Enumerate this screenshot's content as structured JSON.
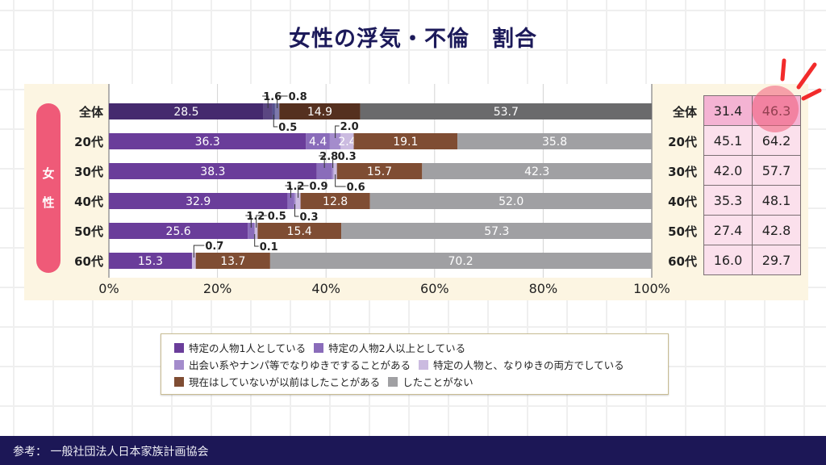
{
  "title": "女性の浮気・不倫　割合",
  "group_label": [
    "女",
    "性"
  ],
  "footer": {
    "source": "参考： 一般社団法人日本家族計画協会"
  },
  "colors": {
    "series": [
      "#6a3d9a",
      "#8a6cba",
      "#a48ccc",
      "#cbbbe0",
      "#7f4d33",
      "#a0a0a3"
    ],
    "overall_series": [
      "#452a6e",
      "#5b4682",
      "#55528f",
      "#7d79ab",
      "#55301f",
      "#6a6a6c"
    ],
    "table_header_fill": "#f4b3d3",
    "table_fill": "#fbe0ec",
    "highlight": "#ef5a78",
    "title": "#1c1a5a",
    "footer_bg": "#1c1756"
  },
  "chart_data": {
    "type": "bar",
    "orientation": "horizontal-stacked-100",
    "title": "女性の浮気・不倫　割合",
    "xlabel": "",
    "ylabel": "",
    "xlim": [
      0,
      100
    ],
    "x_ticks": [
      "0%",
      "20%",
      "40%",
      "60%",
      "80%",
      "100%"
    ],
    "grid": true,
    "legend_position": "bottom",
    "categories": [
      "全体",
      "20代",
      "30代",
      "40代",
      "50代",
      "60代"
    ],
    "series": [
      {
        "name": "特定の人物1人としている",
        "values": [
          28.5,
          36.3,
          38.3,
          32.9,
          25.6,
          15.3
        ]
      },
      {
        "name": "特定の人物2人以上としている",
        "values": [
          1.6,
          4.4,
          2.8,
          1.2,
          1.2,
          0.0
        ]
      },
      {
        "name": "出会い系やナンパ等でなりゆきですることがある",
        "values": [
          0.5,
          2.0,
          0.3,
          0.3,
          0.1,
          0.0
        ]
      },
      {
        "name": "特定の人物と、なりゆきの両方でしている",
        "values": [
          0.8,
          2.4,
          0.6,
          0.9,
          0.5,
          0.7
        ]
      },
      {
        "name": "現在はしていないが以前はしたことがある",
        "values": [
          14.9,
          19.1,
          15.7,
          12.8,
          15.4,
          13.7
        ]
      },
      {
        "name": "したことがない",
        "values": [
          53.7,
          35.8,
          42.3,
          52.0,
          57.3,
          70.2
        ]
      }
    ],
    "inside_labels": [
      [
        "28.5",
        "",
        "",
        "",
        "14.9",
        "53.7"
      ],
      [
        "36.3",
        "4.4",
        "",
        "2.4",
        "19.1",
        "35.8"
      ],
      [
        "38.3",
        "",
        "",
        "",
        "15.7",
        "42.3"
      ],
      [
        "32.9",
        "",
        "",
        "",
        "12.8",
        "52.0"
      ],
      [
        "25.6",
        "",
        "",
        "",
        "15.4",
        "57.3"
      ],
      [
        "15.3",
        "",
        "",
        "",
        "13.7",
        "70.2"
      ]
    ],
    "callouts": [
      {
        "row": 0,
        "text": "1.6",
        "series": 1,
        "side": "above"
      },
      {
        "row": 0,
        "text": "0.8",
        "series": 3,
        "side": "above"
      },
      {
        "row": 0,
        "text": "0.5",
        "series": 2,
        "side": "below"
      },
      {
        "row": 1,
        "text": "2.0",
        "series": 2,
        "side": "above"
      },
      {
        "row": 2,
        "text": "2.8",
        "series": 1,
        "side": "above"
      },
      {
        "row": 2,
        "text": "0.3",
        "series": 2,
        "side": "above"
      },
      {
        "row": 2,
        "text": "0.6",
        "series": 3,
        "side": "below"
      },
      {
        "row": 3,
        "text": "1.2",
        "series": 1,
        "side": "above"
      },
      {
        "row": 3,
        "text": "0.9",
        "series": 3,
        "side": "above"
      },
      {
        "row": 3,
        "text": "0.3",
        "series": 2,
        "side": "below"
      },
      {
        "row": 4,
        "text": "1.2",
        "series": 1,
        "side": "above"
      },
      {
        "row": 4,
        "text": "0.5",
        "series": 3,
        "side": "above"
      },
      {
        "row": 4,
        "text": "0.1",
        "series": 2,
        "side": "below"
      },
      {
        "row": 5,
        "text": "0.7",
        "series": 3,
        "side": "above"
      }
    ],
    "side_table": {
      "rows": [
        "全体",
        "20代",
        "30代",
        "40代",
        "50代",
        "60代"
      ],
      "col1": [
        "31.4",
        "45.1",
        "42.0",
        "35.3",
        "27.4",
        "16.0"
      ],
      "col2": [
        "46.3",
        "64.2",
        "57.7",
        "48.1",
        "42.8",
        "29.7"
      ],
      "highlighted_cell": "46.3"
    }
  },
  "legend": {
    "rows": [
      [
        0,
        1
      ],
      [
        2,
        3
      ],
      [
        4,
        5
      ]
    ]
  }
}
